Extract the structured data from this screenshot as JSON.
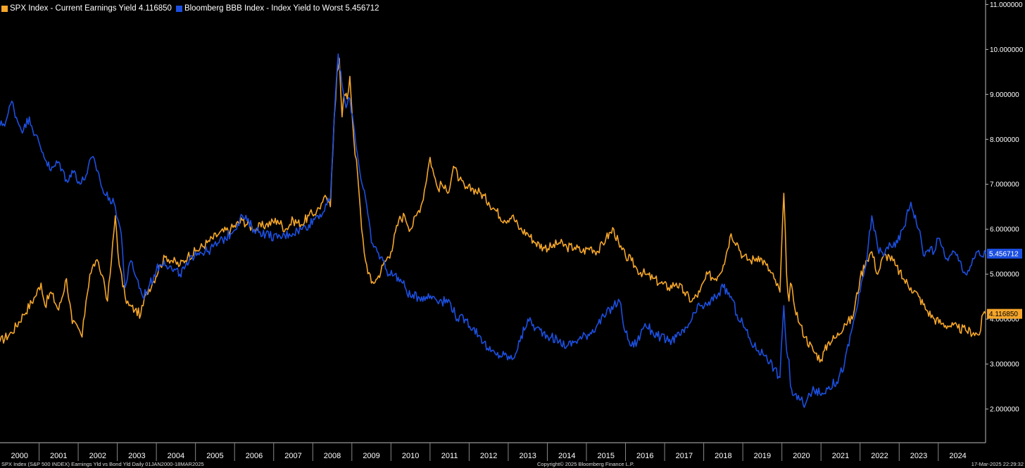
{
  "chart_data": {
    "type": "line",
    "legend_position": "top-left",
    "xlim": [
      2000.0,
      2025.21
    ],
    "ylim": [
      1.25,
      11.1
    ],
    "x_ticks": [
      "2000",
      "2001",
      "2002",
      "2003",
      "2004",
      "2005",
      "2006",
      "2007",
      "2008",
      "2009",
      "2010",
      "2011",
      "2012",
      "2013",
      "2014",
      "2015",
      "2016",
      "2017",
      "2018",
      "2019",
      "2020",
      "2021",
      "2022",
      "2023",
      "2024"
    ],
    "y_ticks": [
      "2.000000",
      "3.000000",
      "4.000000",
      "5.000000",
      "6.000000",
      "7.000000",
      "8.000000",
      "9.000000",
      "10.000000",
      "11.000000"
    ],
    "y_tick_values": [
      2,
      3,
      4,
      5,
      6,
      7,
      8,
      9,
      10,
      11
    ],
    "series": [
      {
        "name": "SPX Index - Current Earnings Yield 4.116850",
        "color": "#f5a62b",
        "last_value": "4.116850",
        "x": [
          2000.0,
          2000.3,
          2000.6,
          2000.9,
          2001.05,
          2001.15,
          2001.3,
          2001.5,
          2001.7,
          2001.85,
          2002.0,
          2002.1,
          2002.2,
          2002.3,
          2002.45,
          2002.55,
          2002.65,
          2002.75,
          2002.85,
          2002.95,
          2003.05,
          2003.2,
          2003.3,
          2003.45,
          2003.6,
          2003.75,
          2003.9,
          2004.1,
          2004.25,
          2004.4,
          2004.6,
          2004.8,
          2005.0,
          2005.3,
          2005.6,
          2005.9,
          2006.2,
          2006.5,
          2006.8,
          2007.1,
          2007.3,
          2007.5,
          2007.7,
          2007.9,
          2008.1,
          2008.25,
          2008.35,
          2008.45,
          2008.55,
          2008.62,
          2008.68,
          2008.75,
          2008.8,
          2008.88,
          2008.95,
          2009.05,
          2009.15,
          2009.25,
          2009.35,
          2009.5,
          2009.65,
          2009.8,
          2010.0,
          2010.2,
          2010.35,
          2010.5,
          2010.65,
          2010.8,
          2011.0,
          2011.1,
          2011.2,
          2011.3,
          2011.45,
          2011.6,
          2011.75,
          2011.9,
          2012.1,
          2012.3,
          2012.5,
          2012.7,
          2012.9,
          2013.1,
          2013.3,
          2013.5,
          2013.7,
          2013.9,
          2014.1,
          2014.3,
          2014.5,
          2014.7,
          2014.9,
          2015.1,
          2015.3,
          2015.5,
          2015.7,
          2015.85,
          2016.0,
          2016.15,
          2016.3,
          2016.5,
          2016.7,
          2016.9,
          2017.1,
          2017.3,
          2017.5,
          2017.7,
          2017.9,
          2018.1,
          2018.3,
          2018.5,
          2018.7,
          2018.85,
          2019.0,
          2019.2,
          2019.4,
          2019.6,
          2019.8,
          2019.95,
          2020.05,
          2020.12,
          2020.18,
          2020.22,
          2020.3,
          2020.45,
          2020.6,
          2020.8,
          2021.0,
          2021.2,
          2021.4,
          2021.6,
          2021.8,
          2022.0,
          2022.15,
          2022.3,
          2022.45,
          2022.6,
          2022.75,
          2022.9,
          2023.1,
          2023.3,
          2023.5,
          2023.7,
          2023.9,
          2024.1,
          2024.3,
          2024.5,
          2024.7,
          2024.9,
          2025.05,
          2025.15,
          2025.21
        ],
        "y": [
          3.5,
          3.7,
          4.1,
          4.5,
          4.8,
          4.3,
          4.6,
          4.2,
          4.9,
          3.9,
          3.8,
          3.6,
          4.4,
          5.0,
          5.3,
          5.1,
          4.9,
          4.4,
          5.3,
          6.3,
          5.2,
          4.5,
          4.3,
          4.2,
          4.1,
          4.6,
          4.8,
          5.2,
          5.4,
          5.3,
          5.2,
          5.4,
          5.5,
          5.7,
          5.9,
          6.0,
          6.2,
          6.0,
          6.1,
          6.2,
          6.0,
          6.2,
          6.1,
          6.3,
          6.4,
          6.6,
          6.7,
          6.5,
          8.5,
          9.5,
          9.8,
          8.5,
          9.0,
          8.9,
          9.4,
          8.0,
          7.2,
          6.0,
          5.3,
          4.8,
          4.9,
          5.2,
          5.5,
          6.2,
          6.3,
          6.0,
          6.3,
          6.6,
          7.6,
          7.2,
          6.9,
          7.0,
          6.8,
          7.4,
          7.1,
          6.9,
          6.9,
          6.8,
          6.6,
          6.4,
          6.2,
          6.3,
          6.0,
          5.9,
          5.7,
          5.6,
          5.6,
          5.7,
          5.6,
          5.6,
          5.5,
          5.6,
          5.5,
          5.8,
          6.0,
          5.6,
          5.4,
          5.3,
          5.1,
          5.0,
          4.9,
          4.8,
          4.7,
          4.8,
          4.6,
          4.4,
          4.6,
          5.0,
          4.9,
          5.2,
          5.9,
          5.7,
          5.4,
          5.3,
          5.4,
          5.2,
          4.9,
          4.6,
          6.8,
          5.0,
          4.4,
          4.8,
          4.4,
          3.9,
          3.6,
          3.3,
          3.1,
          3.5,
          3.6,
          3.9,
          4.0,
          4.9,
          5.3,
          5.5,
          5.0,
          5.4,
          5.4,
          5.2,
          4.9,
          4.7,
          4.5,
          4.2,
          4.0,
          3.9,
          3.85,
          3.8,
          3.75,
          3.7,
          3.65,
          4.12,
          4.12
        ]
      },
      {
        "name": "Bloomberg BBB Index - Index Yield to Worst 5.456712",
        "color": "#1c4fe0",
        "last_value": "5.456712",
        "x": [
          2000.0,
          2000.15,
          2000.3,
          2000.45,
          2000.6,
          2000.75,
          2000.9,
          2001.1,
          2001.3,
          2001.5,
          2001.7,
          2001.9,
          2002.05,
          2002.2,
          2002.35,
          2002.5,
          2002.65,
          2002.8,
          2002.95,
          2003.1,
          2003.2,
          2003.35,
          2003.5,
          2003.65,
          2003.8,
          2004.0,
          2004.2,
          2004.4,
          2004.6,
          2004.8,
          2005.0,
          2005.3,
          2005.6,
          2005.9,
          2006.2,
          2006.5,
          2006.8,
          2007.1,
          2007.4,
          2007.7,
          2007.9,
          2008.1,
          2008.3,
          2008.45,
          2008.55,
          2008.65,
          2008.75,
          2008.85,
          2008.95,
          2009.05,
          2009.2,
          2009.35,
          2009.5,
          2009.65,
          2009.8,
          2009.95,
          2010.1,
          2010.3,
          2010.5,
          2010.7,
          2010.9,
          2011.1,
          2011.3,
          2011.5,
          2011.7,
          2011.9,
          2012.1,
          2012.3,
          2012.5,
          2012.7,
          2012.9,
          2013.1,
          2013.3,
          2013.5,
          2013.7,
          2013.9,
          2014.1,
          2014.3,
          2014.5,
          2014.7,
          2014.9,
          2015.1,
          2015.3,
          2015.5,
          2015.7,
          2015.85,
          2016.0,
          2016.15,
          2016.3,
          2016.5,
          2016.7,
          2016.9,
          2017.1,
          2017.3,
          2017.5,
          2017.7,
          2017.9,
          2018.1,
          2018.3,
          2018.5,
          2018.7,
          2018.85,
          2019.0,
          2019.2,
          2019.4,
          2019.6,
          2019.8,
          2019.95,
          2020.05,
          2020.12,
          2020.18,
          2020.22,
          2020.3,
          2020.45,
          2020.6,
          2020.8,
          2021.0,
          2021.2,
          2021.4,
          2021.6,
          2021.8,
          2022.0,
          2022.15,
          2022.3,
          2022.45,
          2022.6,
          2022.75,
          2022.9,
          2023.1,
          2023.3,
          2023.5,
          2023.65,
          2023.8,
          2023.9,
          2024.0,
          2024.1,
          2024.25,
          2024.4,
          2024.55,
          2024.7,
          2024.85,
          2025.0,
          2025.1,
          2025.21
        ],
        "y": [
          8.3,
          8.4,
          8.85,
          8.4,
          8.2,
          8.5,
          8.1,
          7.7,
          7.3,
          7.5,
          7.1,
          7.3,
          7.0,
          7.2,
          7.6,
          7.3,
          6.8,
          6.7,
          6.5,
          5.9,
          4.7,
          5.3,
          4.9,
          4.5,
          4.7,
          5.1,
          5.3,
          5.1,
          5.0,
          5.2,
          5.5,
          5.5,
          5.7,
          5.9,
          6.3,
          6.0,
          5.9,
          5.8,
          5.9,
          6.0,
          6.1,
          6.3,
          6.4,
          6.7,
          8.5,
          9.9,
          9.2,
          8.7,
          8.9,
          8.3,
          7.3,
          6.7,
          5.7,
          5.5,
          5.3,
          5.0,
          5.0,
          4.8,
          4.5,
          4.5,
          4.5,
          4.5,
          4.4,
          4.4,
          4.0,
          4.0,
          3.8,
          3.6,
          3.3,
          3.2,
          3.2,
          3.1,
          3.5,
          4.0,
          3.8,
          3.7,
          3.6,
          3.5,
          3.4,
          3.5,
          3.6,
          3.7,
          3.9,
          4.1,
          4.3,
          4.4,
          3.7,
          3.4,
          3.5,
          3.9,
          3.7,
          3.6,
          3.5,
          3.6,
          3.7,
          4.0,
          4.3,
          4.3,
          4.5,
          4.7,
          4.5,
          4.1,
          3.9,
          3.5,
          3.3,
          3.2,
          2.9,
          2.7,
          4.3,
          3.3,
          3.1,
          2.5,
          2.3,
          2.2,
          2.1,
          2.5,
          2.3,
          2.5,
          2.6,
          3.0,
          3.8,
          4.6,
          5.2,
          6.3,
          5.6,
          5.4,
          5.7,
          5.6,
          6.0,
          6.6,
          6.0,
          5.4,
          5.6,
          5.5,
          5.8,
          5.6,
          5.3,
          5.5,
          5.3,
          5.0,
          5.2,
          5.5,
          5.4,
          5.46
        ]
      }
    ],
    "footer_left": "SPX Index (S&P 500 INDEX) Earnings Yld vs Bond Yld  Daily 01JAN2000-18MAR2025",
    "footer_center": "Copyright© 2025 Bloomberg Finance L.P.",
    "footer_right": "17-Mar-2025 22:29:32"
  }
}
